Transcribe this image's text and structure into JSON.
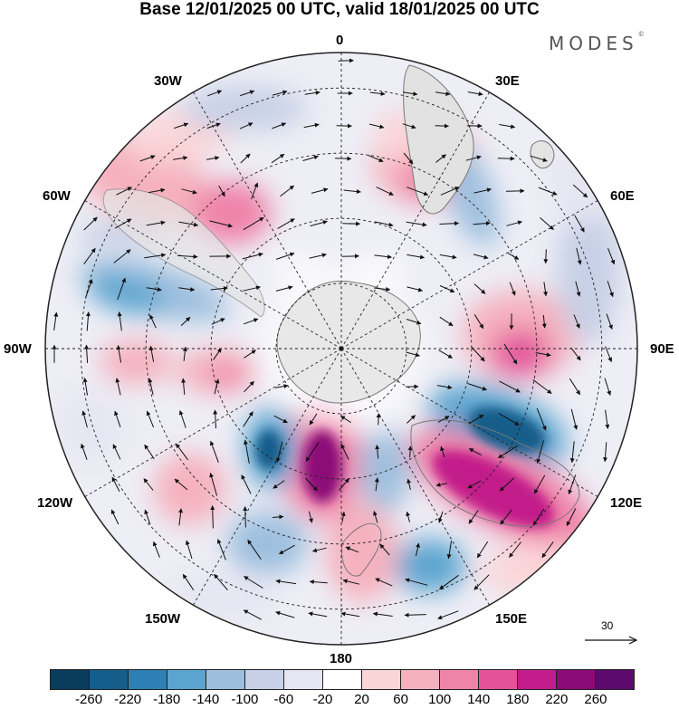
{
  "title": "Base 12/01/2025 00 UTC, valid 18/01/2025 00 UTC",
  "brand": "MODES",
  "brand_mark": "©",
  "longitude_labels": {
    "top": "0",
    "e30": "30E",
    "e60": "60E",
    "e90": "90E",
    "e120": "120E",
    "e150": "150E",
    "bottom": "180",
    "w150": "150W",
    "w120": "120W",
    "w90": "90W",
    "w60": "60W",
    "w30": "30W"
  },
  "reference_vector_label": "30",
  "colorbar": {
    "colors": [
      "#0a3d5c",
      "#155d8a",
      "#2d7fb4",
      "#5ba4cf",
      "#9dbfde",
      "#c7d0e6",
      "#e6e6f2",
      "#ffffff",
      "#fad5d8",
      "#f5b1be",
      "#ef83a8",
      "#e3529b",
      "#c21c8a",
      "#8c0b78",
      "#5c0a6e"
    ],
    "tick_labels": [
      "-260",
      "-220",
      "-180",
      "-140",
      "-100",
      "-60",
      "-20",
      "20",
      "60",
      "100",
      "140",
      "180",
      "220",
      "260"
    ]
  },
  "colors": {
    "land": "#e6e6e6",
    "grid": "#222222",
    "arrow": "#111111"
  }
}
